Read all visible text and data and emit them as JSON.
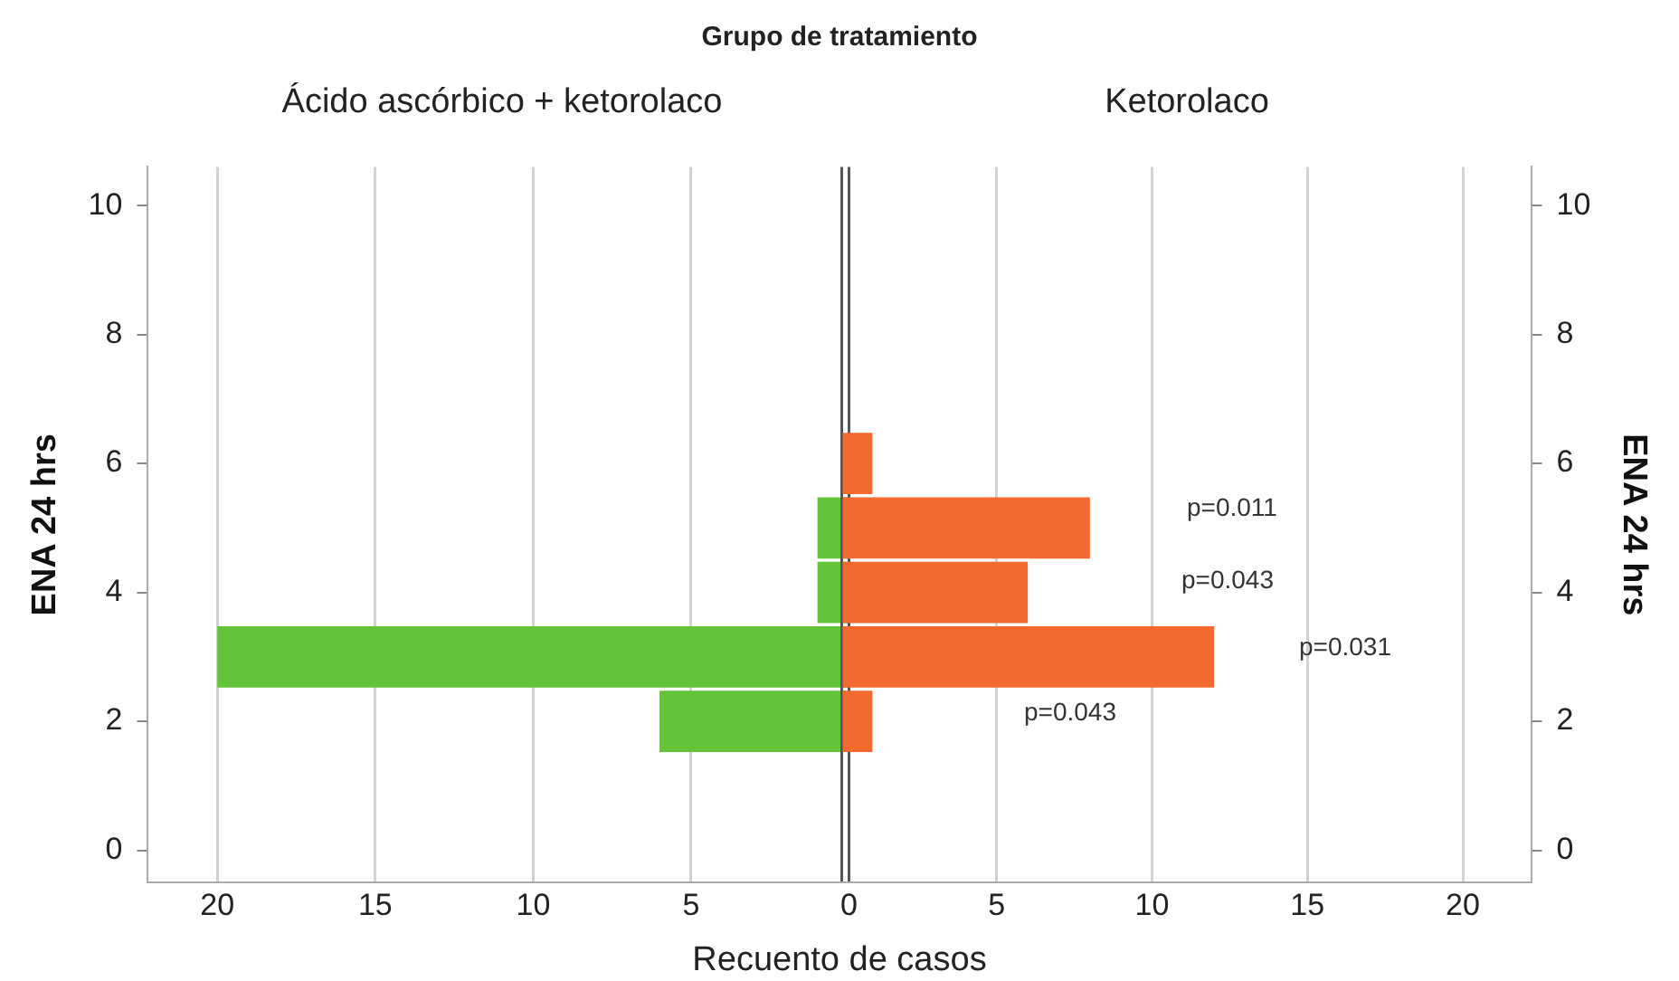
{
  "chart_data": [
    {
      "type": "histogram",
      "orientation": "horizontal",
      "title": "Grupo de tratamiento",
      "subtitle": "Ácido ascórbico + ketorolaco",
      "xlabel": "Recuento de casos",
      "ylabel": "ENA 24 hrs",
      "bins": [
        1.5,
        2.5,
        3.5,
        4.5,
        5.5,
        6.5
      ],
      "values": [
        6,
        20,
        1,
        1,
        0
      ],
      "color": "#63c43a",
      "xlim": [
        22.2,
        0
      ],
      "xticks": [
        20,
        15,
        10,
        5,
        0
      ],
      "ylim": [
        -0.5,
        10.6
      ],
      "yticks": [
        0,
        2,
        4,
        6,
        8,
        10
      ],
      "grid": "x",
      "legend": false
    },
    {
      "type": "histogram",
      "orientation": "horizontal",
      "subtitle": "Ketorolaco",
      "ylabel": "ENA 24 hrs",
      "bins": [
        1.5,
        2.5,
        3.5,
        4.5,
        5.5,
        6.5
      ],
      "values": [
        1,
        12,
        6,
        8,
        1
      ],
      "color": "#f4692d",
      "xlim": [
        0,
        22.2
      ],
      "xticks": [
        {
          "value": 0,
          "label": null
        },
        5,
        10,
        15,
        20
      ],
      "ylim": [
        -0.5,
        10.6
      ],
      "yticks": [
        0,
        2,
        4,
        6,
        8,
        10
      ],
      "grid": "x",
      "legend": false,
      "annotations": [
        "p=0.011",
        "p=0.043",
        "p=0.031",
        "p=0.043"
      ]
    }
  ]
}
